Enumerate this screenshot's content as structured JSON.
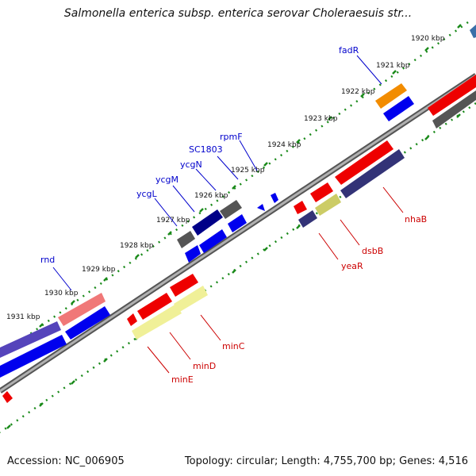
{
  "header": {
    "title": "Salmonella enterica subsp. enterica serovar Choleraesuis str..."
  },
  "footer": {
    "accession": "Accession: NC_006905",
    "summary": "Topology: circular; Length: 4,755,700 bp; Genes: 4,516"
  },
  "colors": {
    "forward_gene_label": "#0000cc",
    "reverse_gene_label": "#cc0000",
    "backbone": "#8c8c8c",
    "tick_dots": "#1a8a1a"
  },
  "scale_ticks": [
    {
      "label": "1920 kbp"
    },
    {
      "label": "1921 kbp"
    },
    {
      "label": "1922 kbp"
    },
    {
      "label": "1923 kbp"
    },
    {
      "label": "1924 kbp"
    },
    {
      "label": "1925 kbp"
    },
    {
      "label": "1926 kbp"
    },
    {
      "label": "1927 kbp"
    },
    {
      "label": "1928 kbp"
    },
    {
      "label": "1929 kbp"
    },
    {
      "label": "1930 kbp"
    },
    {
      "label": "1931 kbp"
    }
  ],
  "gene_labels": {
    "forward": [
      "fadR",
      "rpmF",
      "SC1803",
      "ycgN",
      "ycgM",
      "ycgL",
      "rnd"
    ],
    "reverse": [
      "nhaB",
      "dsbB",
      "yeaR",
      "minC",
      "minD",
      "minE"
    ]
  }
}
